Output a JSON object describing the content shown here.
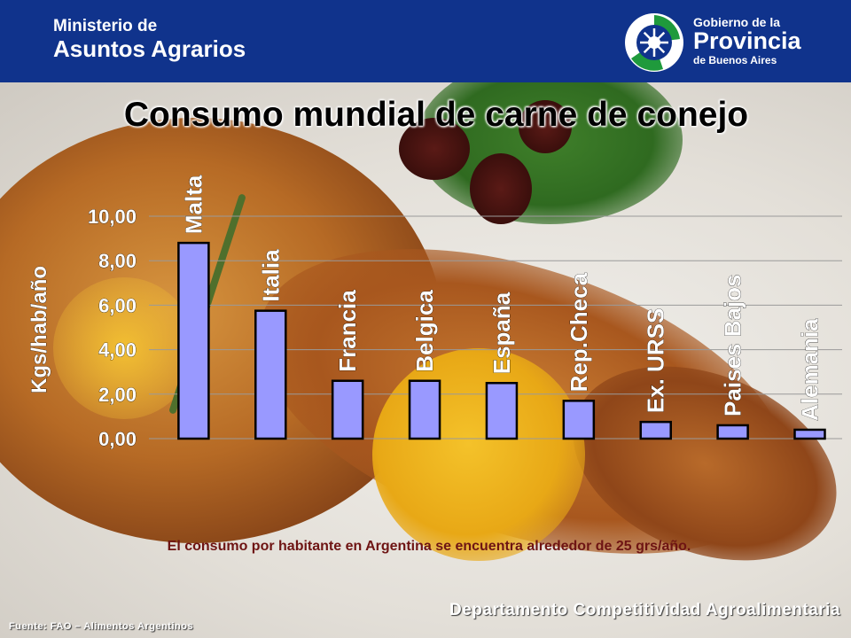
{
  "header": {
    "ministerio_line1": "Ministerio de",
    "ministerio_line2": "Asuntos Agrarios",
    "gobierno_line1": "Gobierno de la",
    "gobierno_line2": "Provincia",
    "gobierno_line3": "de Buenos Aires"
  },
  "colors": {
    "header_bg": "#10338c",
    "bar_fill": "#9999ff",
    "note_text": "#6e1413"
  },
  "chart_data": {
    "type": "bar",
    "title": "Consumo mundial de carne de conejo",
    "ylabel": "Kgs/hab/año",
    "xlabel": "",
    "ylim": [
      0,
      10
    ],
    "yticks": [
      0,
      2,
      4,
      6,
      8,
      10
    ],
    "ytick_labels": [
      "0,00",
      "2,00",
      "4,00",
      "6,00",
      "8,00",
      "10,00"
    ],
    "grid": true,
    "categories": [
      "Malta",
      "Italia",
      "Francia",
      "Belgica",
      "España",
      "Rep.Checa",
      "Ex. URSS",
      "Paises Bajos",
      "Alemania"
    ],
    "values": [
      8.8,
      5.75,
      2.6,
      2.6,
      2.5,
      1.7,
      0.75,
      0.6,
      0.4
    ]
  },
  "footer": {
    "note": "El consumo por habitante en Argentina se encuentra alrededor de 25 grs/año.",
    "departamento": "Departamento Competitividad Agroalimentaria",
    "fuente": "Fuente: FAO – Alimentos Argentinos"
  }
}
